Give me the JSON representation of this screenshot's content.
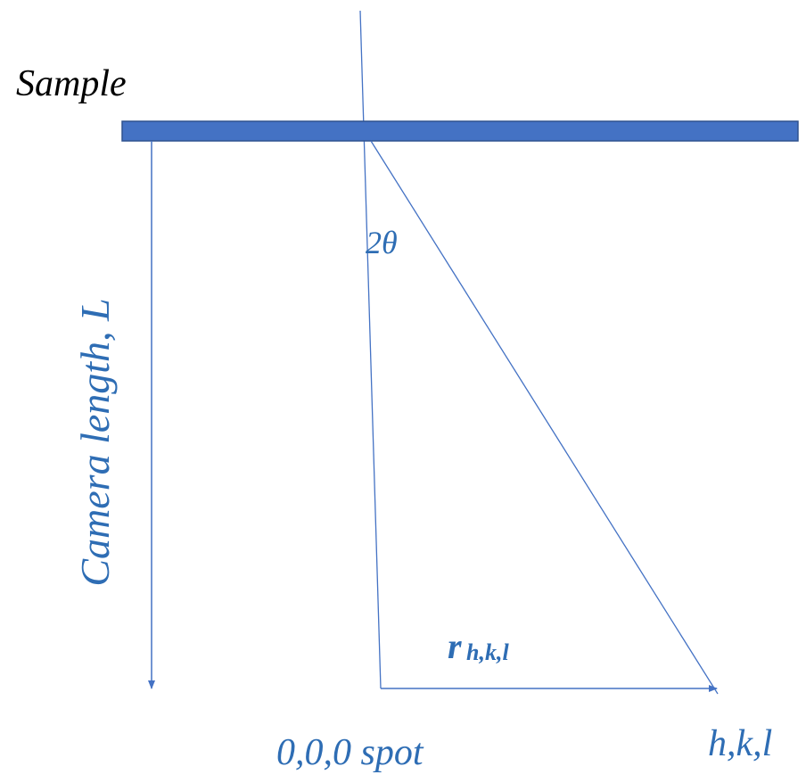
{
  "labels": {
    "sample": "Sample",
    "camera_length": "Camera length, L",
    "two_theta": "2θ",
    "r_main": "r",
    "r_subscript": "h,k,l",
    "origin_spot": "0,0,0 spot",
    "hkl_spot": "h,k,l"
  },
  "colors": {
    "sample_bar": "#4472C4",
    "line": "#4472C4",
    "label_blue": "#2E6DB4",
    "text_black": "#000000"
  }
}
